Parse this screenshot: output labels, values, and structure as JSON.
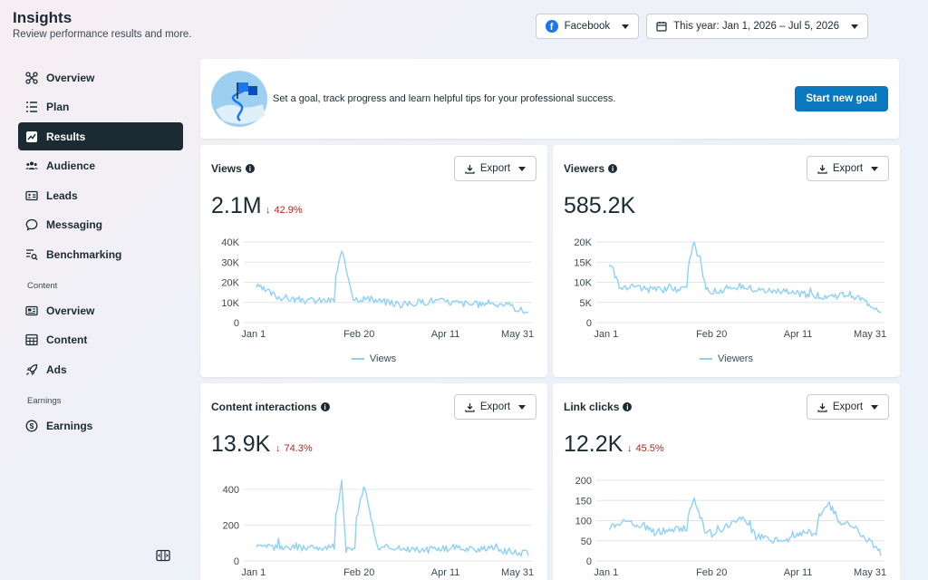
{
  "header": {
    "title": "Insights",
    "subtitle": "Review performance results and more."
  },
  "controls": {
    "platform": "Facebook",
    "date_range": "This year: Jan 1, 2026 – Jul 5, 2026"
  },
  "sidebar": {
    "items": [
      {
        "label": "Overview",
        "icon": "nodes-icon"
      },
      {
        "label": "Plan",
        "icon": "list-icon"
      },
      {
        "label": "Results",
        "icon": "trend-chart-icon",
        "active": true
      },
      {
        "label": "Audience",
        "icon": "people-icon"
      },
      {
        "label": "Leads",
        "icon": "id-card-icon"
      },
      {
        "label": "Messaging",
        "icon": "chat-bubble-icon"
      },
      {
        "label": "Benchmarking",
        "icon": "search-list-icon"
      }
    ],
    "content_section": "Content",
    "content_items": [
      {
        "label": "Overview",
        "icon": "card-icon"
      },
      {
        "label": "Content",
        "icon": "grid-table-icon"
      },
      {
        "label": "Ads",
        "icon": "rocket-icon"
      }
    ],
    "earnings_section": "Earnings",
    "earnings_items": [
      {
        "label": "Earnings",
        "icon": "dollar-circle-icon"
      }
    ]
  },
  "goal_banner": {
    "text": "Set a goal, track progress and learn helpful tips for your professional success.",
    "button": "Start new goal"
  },
  "export_label": "Export",
  "line_color": "#8fd1f5",
  "cards": [
    {
      "title": "Views",
      "value": "2.1M",
      "change": "42.9%",
      "legend": "Views"
    },
    {
      "title": "Viewers",
      "value": "585.2K",
      "change": "",
      "legend": "Viewers"
    },
    {
      "title": "Content interactions",
      "value": "13.9K",
      "change": "74.3%",
      "legend": ""
    },
    {
      "title": "Link clicks",
      "value": "12.2K",
      "change": "45.5%",
      "legend": ""
    }
  ],
  "chart_data": [
    {
      "type": "line",
      "title": "Views",
      "x_ticks": [
        "Jan 1",
        "Feb 20",
        "Apr 11",
        "May 31"
      ],
      "y_ticks": [
        "0",
        "10K",
        "20K",
        "30K",
        "40K"
      ],
      "ylim": [
        0,
        40000
      ],
      "series": [
        {
          "name": "Views"
        }
      ],
      "legend": "bottom",
      "x": [
        "Jan 1",
        "Jan 15",
        "Feb 1",
        "Feb 20",
        "Feb 28",
        "Mar 15",
        "Apr 1",
        "Apr 11",
        "May 1",
        "May 15",
        "May 31",
        "Jun 15",
        "Jul 5"
      ],
      "values": [
        18000,
        13000,
        11000,
        11000,
        35000,
        12000,
        10000,
        9000,
        11000,
        10000,
        9000,
        10000,
        5000
      ]
    },
    {
      "type": "line",
      "title": "Viewers",
      "x_ticks": [
        "Jan 1",
        "Feb 20",
        "Apr 11",
        "May 31"
      ],
      "y_ticks": [
        "0",
        "5K",
        "10K",
        "15K",
        "20K"
      ],
      "ylim": [
        0,
        20000
      ],
      "series": [
        {
          "name": "Viewers"
        }
      ],
      "legend": "bottom",
      "x": [
        "Jan 1",
        "Jan 15",
        "Feb 1",
        "Feb 20",
        "Feb 28",
        "Mar 15",
        "Apr 1",
        "Apr 11",
        "May 1",
        "May 15",
        "May 31",
        "Jun 15",
        "Jul 5"
      ],
      "values": [
        15000,
        9000,
        8000,
        8500,
        20000,
        8000,
        9000,
        8000,
        7500,
        7000,
        6500,
        7000,
        3000
      ]
    },
    {
      "type": "line",
      "title": "Content interactions",
      "x_ticks": [
        "Jan 1",
        "Feb 20",
        "Apr 11",
        "May 31"
      ],
      "y_ticks": [
        "0",
        "200",
        "400"
      ],
      "ylim": [
        0,
        450
      ],
      "series": [
        {
          "name": ""
        }
      ],
      "x": [
        "Jan 1",
        "Jan 15",
        "Feb 1",
        "Feb 20",
        "Feb 28",
        "Mar 5",
        "Mar 15",
        "Apr 1",
        "Apr 11",
        "May 1",
        "May 15",
        "May 31",
        "Jun 15",
        "Jul 5"
      ],
      "values": [
        70,
        80,
        75,
        80,
        440,
        60,
        420,
        80,
        70,
        60,
        75,
        70,
        60,
        40
      ]
    },
    {
      "type": "line",
      "title": "Link clicks",
      "x_ticks": [
        "Jan 1",
        "Feb 20",
        "Apr 11",
        "May 31"
      ],
      "y_ticks": [
        "0",
        "50",
        "100",
        "150",
        "200"
      ],
      "ylim": [
        0,
        200
      ],
      "series": [
        {
          "name": ""
        }
      ],
      "x": [
        "Jan 1",
        "Jan 15",
        "Feb 1",
        "Feb 20",
        "Feb 28",
        "Mar 15",
        "Apr 1",
        "Apr 11",
        "May 1",
        "May 15",
        "May 31",
        "Jun 15",
        "Jul 5"
      ],
      "values": [
        80,
        100,
        70,
        80,
        150,
        70,
        110,
        60,
        50,
        70,
        140,
        90,
        20
      ]
    }
  ]
}
